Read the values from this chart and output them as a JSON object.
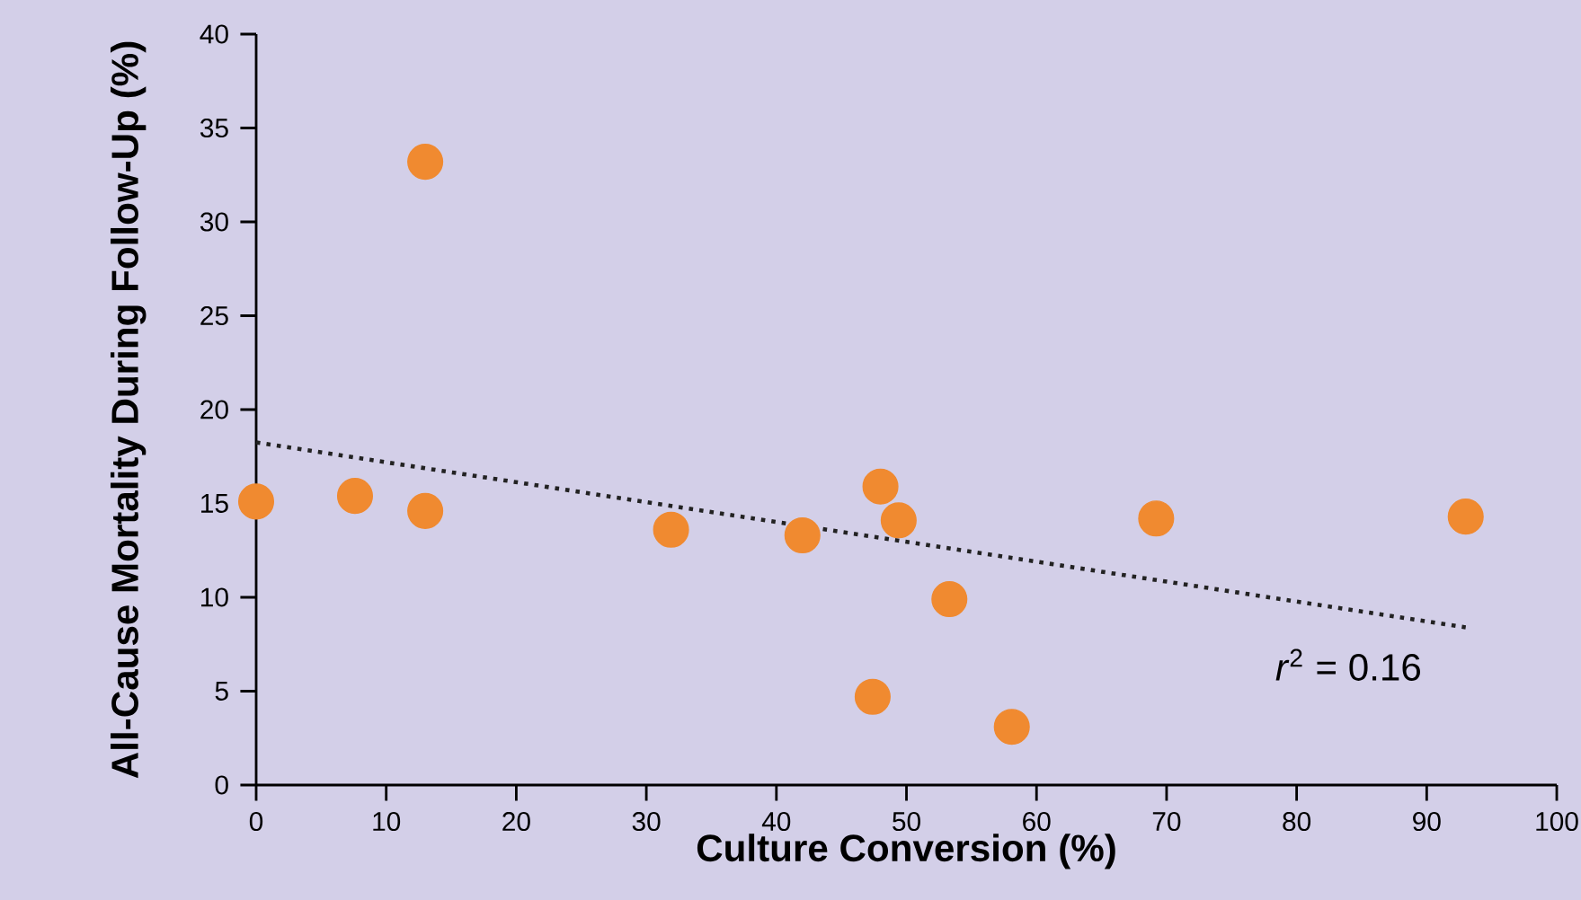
{
  "chart_data": {
    "type": "scatter",
    "xlabel": "Culture Conversion (%)",
    "ylabel": "All-Cause Mortality During Follow-Up (%)",
    "xlim": [
      0,
      100
    ],
    "xticks": [
      0,
      10,
      20,
      30,
      40,
      50,
      60,
      70,
      80,
      90,
      100
    ],
    "ylim": [
      0,
      40
    ],
    "yticks": [
      0,
      5,
      10,
      15,
      20,
      25,
      30,
      35,
      40
    ],
    "series": [
      {
        "color": "#f08a30",
        "marker": "circle",
        "x": [
          0,
          7.6,
          13.0,
          13.0,
          31.9,
          42.0,
          48.0,
          49.4,
          53.3,
          47.4,
          58.1,
          69.2,
          93.0
        ],
        "values": [
          15.1,
          15.4,
          33.2,
          14.6,
          13.6,
          13.3,
          15.9,
          14.1,
          9.9,
          4.7,
          3.1,
          14.2,
          14.3
        ]
      },
      {
        "type": "line",
        "color": "#222222",
        "line_style": "dotted",
        "marker": "none",
        "x": [
          0,
          93
        ],
        "values": [
          18.25,
          8.4
        ]
      }
    ],
    "annotations": [
      "*r*$^{2}$ = 0.16"
    ]
  }
}
